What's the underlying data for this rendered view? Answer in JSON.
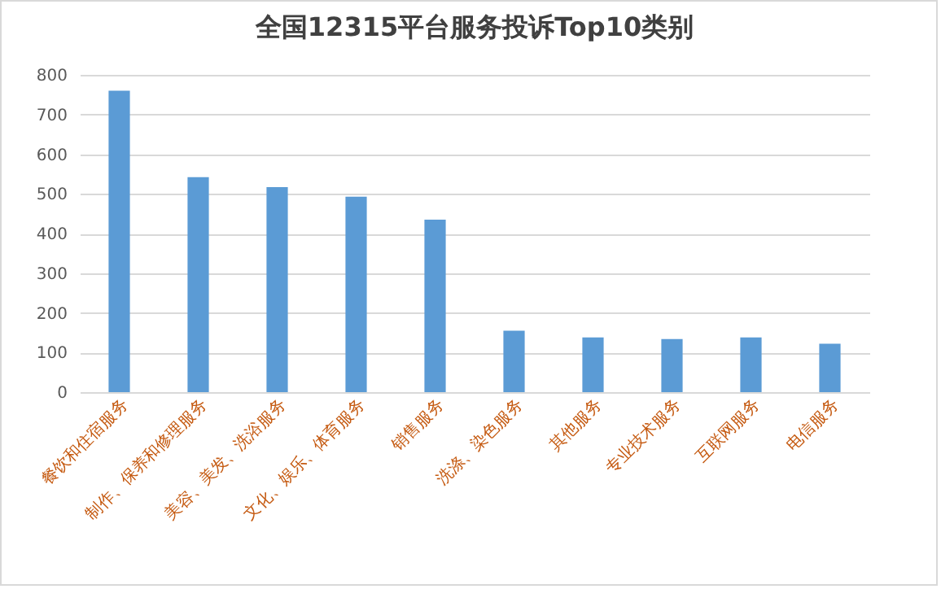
{
  "chart_data": {
    "type": "bar",
    "title": "全国12315平台服务投诉Top10类别",
    "categories": [
      "餐饮和住宿服务",
      "制作、保养和修理服务",
      "美容、美发、洗浴服务",
      "文化、娱乐、体育服务",
      "销售服务",
      "洗涤、染色服务",
      "其他服务",
      "专业技术服务",
      "互联网服务",
      "电信服务"
    ],
    "values": [
      760,
      542,
      517,
      493,
      435,
      155,
      138,
      134,
      138,
      122
    ],
    "color": "#5b9bd5",
    "ylim": [
      0,
      800
    ],
    "yticks": [
      0,
      100,
      200,
      300,
      400,
      500,
      600,
      700,
      800
    ],
    "grid": "y"
  }
}
